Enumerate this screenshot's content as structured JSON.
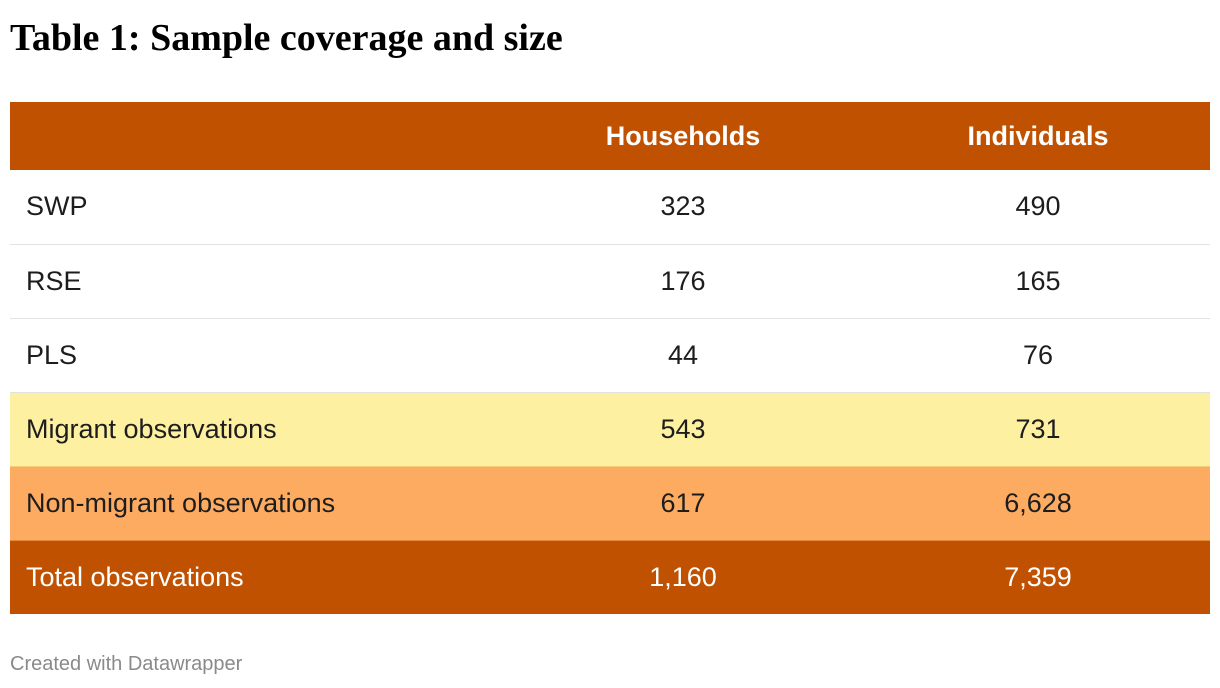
{
  "chart_data": {
    "type": "table",
    "title": "Table 1: Sample coverage and size",
    "columns": [
      "",
      "Households",
      "Individuals"
    ],
    "rows": [
      {
        "label": "SWP",
        "households": "323",
        "individuals": "490"
      },
      {
        "label": "RSE",
        "households": "176",
        "individuals": "165"
      },
      {
        "label": "PLS",
        "households": "44",
        "individuals": "76"
      },
      {
        "label": "Migrant observations",
        "households": "543",
        "individuals": "731"
      },
      {
        "label": "Non-migrant observations",
        "households": "617",
        "individuals": "6,628"
      },
      {
        "label": "Total observations",
        "households": "1,160",
        "individuals": "7,359"
      }
    ],
    "row_colors": {
      "header": "#c05100",
      "migrant": "#fdf0a1",
      "non_migrant": "#feab62",
      "total": "#c05100"
    }
  },
  "footer": {
    "credit": "Created with Datawrapper"
  }
}
